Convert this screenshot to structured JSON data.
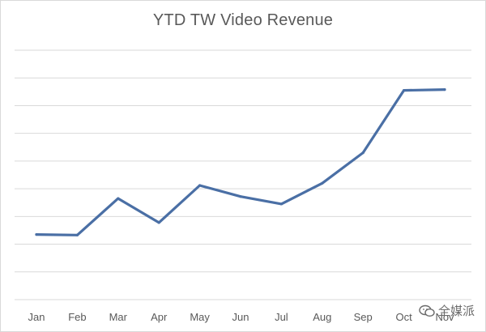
{
  "watermark": {
    "text": "全媒派",
    "icon": "wechat-icon"
  },
  "chart_data": {
    "type": "line",
    "title": "YTD TW Video Revenue",
    "xlabel": "",
    "ylabel": "",
    "categories": [
      "Jan",
      "Feb",
      "Mar",
      "Apr",
      "May",
      "Jun",
      "Jul",
      "Aug",
      "Sep",
      "Oct",
      "Nov"
    ],
    "series": [
      {
        "values": [
          2.35,
          2.33,
          3.65,
          2.78,
          4.12,
          3.72,
          3.45,
          4.2,
          5.3,
          7.55,
          7.58
        ],
        "color": "#4a6fa5"
      }
    ],
    "ylim": [
      0,
      9
    ],
    "y_gridlines": 9,
    "y_tick_labels_shown": false,
    "grid": true,
    "legend": "none"
  }
}
